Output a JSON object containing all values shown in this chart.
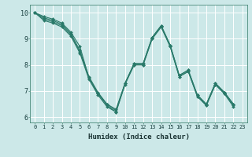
{
  "title": "",
  "xlabel": "Humidex (Indice chaleur)",
  "bg_color": "#cce8e8",
  "grid_color": "#ffffff",
  "line_color": "#2a7a6a",
  "xlim": [
    -0.5,
    23.5
  ],
  "ylim": [
    5.8,
    10.3
  ],
  "xticks": [
    0,
    1,
    2,
    3,
    4,
    5,
    6,
    7,
    8,
    9,
    10,
    11,
    12,
    13,
    14,
    15,
    16,
    17,
    18,
    19,
    20,
    21,
    22,
    23
  ],
  "yticks": [
    6,
    7,
    8,
    9,
    10
  ],
  "series": [
    [
      10.0,
      9.85,
      9.75,
      9.6,
      9.25,
      8.7,
      7.5,
      6.9,
      6.5,
      6.3,
      7.3,
      8.05,
      8.05,
      9.05,
      9.5,
      8.75,
      7.6,
      7.8,
      6.85,
      6.5,
      7.3,
      6.95,
      6.5
    ],
    [
      10.0,
      9.8,
      9.7,
      9.55,
      9.2,
      8.55,
      7.55,
      6.95,
      6.5,
      6.25,
      7.3,
      8.05,
      8.05,
      9.05,
      9.5,
      8.75,
      7.6,
      7.8,
      6.85,
      6.5,
      7.3,
      6.95,
      6.5
    ],
    [
      10.0,
      9.75,
      9.65,
      9.5,
      9.15,
      8.5,
      7.5,
      6.9,
      6.45,
      6.2,
      7.3,
      8.0,
      8.0,
      9.0,
      9.45,
      8.7,
      7.55,
      7.75,
      6.8,
      6.45,
      7.25,
      6.9,
      6.45
    ],
    [
      10.0,
      9.7,
      9.6,
      9.45,
      9.1,
      8.45,
      7.45,
      6.85,
      6.4,
      6.2,
      7.25,
      8.0,
      8.0,
      9.0,
      9.45,
      8.7,
      7.55,
      7.75,
      6.8,
      6.45,
      7.25,
      6.9,
      6.4
    ]
  ]
}
